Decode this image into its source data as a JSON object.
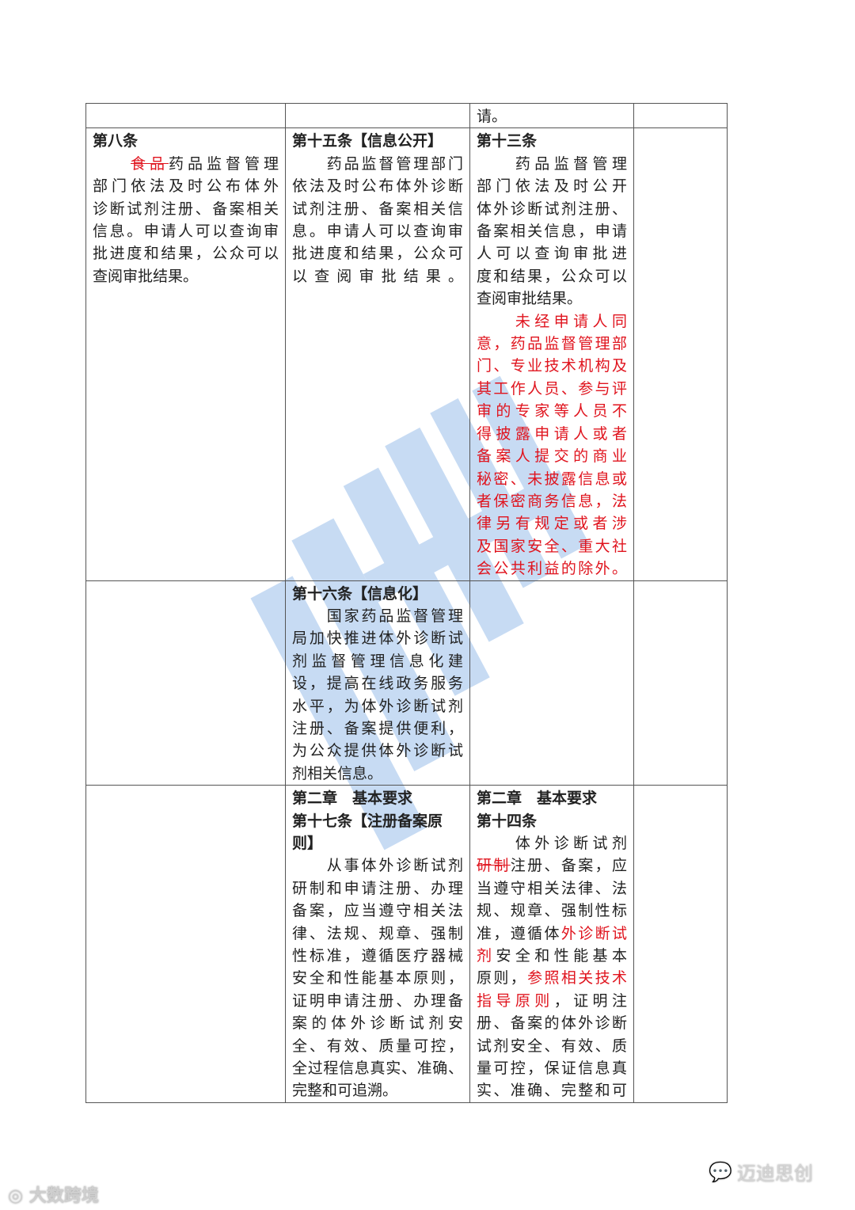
{
  "table": {
    "rows": [
      {
        "cells": [
          {
            "headings": [],
            "paras": []
          },
          {
            "headings": [],
            "paras": []
          },
          {
            "headings": [],
            "paras": [
              [
                [
                  [
                    "请。",
                    ""
                  ]
                ]
              ]
            ]
          },
          {
            "headings": [],
            "paras": []
          }
        ]
      },
      {
        "cells": [
          {
            "headings": [
              "第八条"
            ],
            "paras": [
              [
                [
                  [
                    "　　",
                    ""
                  ],
                  [
                    "食品",
                    "del"
                  ],
                  [
                    "药品监督管理",
                    ""
                  ]
                ],
                [
                  [
                    "部门依法及时公布体外",
                    ""
                  ]
                ],
                [
                  [
                    "诊断试剂注册、备案相关",
                    ""
                  ]
                ],
                [
                  [
                    "信息。申请人可以查询审",
                    ""
                  ]
                ],
                [
                  [
                    "批进度和结果，公众可以",
                    ""
                  ]
                ],
                [
                  [
                    "查阅审批结果。",
                    ""
                  ]
                ]
              ]
            ]
          },
          {
            "headings": [
              "第十五条【信息公开】"
            ],
            "paras": [
              [
                [
                  [
                    "　　药品监督管理部门",
                    ""
                  ]
                ],
                [
                  [
                    "依法及时公布体外诊断",
                    ""
                  ]
                ],
                [
                  [
                    "试剂注册、备案相关信",
                    ""
                  ]
                ],
                [
                  [
                    "息。申请人可以查询审",
                    ""
                  ]
                ],
                [
                  [
                    "批进度和结果，公众可",
                    ""
                  ]
                ],
                [
                  [
                    "以查阅审批结果。",
                    ""
                  ]
                ]
              ]
            ]
          },
          {
            "headings": [
              "第十三条"
            ],
            "paras": [
              [
                [
                  [
                    "　　药品监督管理",
                    ""
                  ]
                ],
                [
                  [
                    "部门依法及时公开",
                    ""
                  ]
                ],
                [
                  [
                    "体外诊断试剂注册、",
                    ""
                  ]
                ],
                [
                  [
                    "备案相关信息，申请",
                    ""
                  ]
                ],
                [
                  [
                    "人可以查询审批进",
                    ""
                  ]
                ],
                [
                  [
                    "度和结果，公众可以",
                    ""
                  ]
                ],
                [
                  [
                    "查阅审批结果。",
                    ""
                  ]
                ]
              ],
              [
                [
                  [
                    "　　未经申请人同",
                    "red"
                  ]
                ],
                [
                  [
                    "意，药品监督管理部",
                    "red"
                  ]
                ],
                [
                  [
                    "门、专业技术机构及",
                    "red"
                  ]
                ],
                [
                  [
                    "其工作人员、参与评",
                    "red"
                  ]
                ],
                [
                  [
                    "审的专家等人员不",
                    "red"
                  ]
                ],
                [
                  [
                    "得披露申请人或者",
                    "red"
                  ]
                ],
                [
                  [
                    "备案人提交的商业",
                    "red"
                  ]
                ],
                [
                  [
                    "秘密、未披露信息或",
                    "red"
                  ]
                ],
                [
                  [
                    "者保密商务信息，法",
                    "red"
                  ]
                ],
                [
                  [
                    "律另有规定或者涉",
                    "red"
                  ]
                ],
                [
                  [
                    "及国家安全、重大社",
                    "red"
                  ]
                ],
                [
                  [
                    "会公共利益的除外。",
                    "red"
                  ]
                ]
              ]
            ]
          },
          {
            "headings": [],
            "paras": []
          }
        ]
      },
      {
        "cells": [
          {
            "headings": [],
            "paras": []
          },
          {
            "headings": [
              "第十六条【信息化】"
            ],
            "paras": [
              [
                [
                  [
                    "　　国家药品监督管理",
                    ""
                  ]
                ],
                [
                  [
                    "局加快推进体外诊断试",
                    ""
                  ]
                ],
                [
                  [
                    "剂监督管理信息化建",
                    ""
                  ]
                ],
                [
                  [
                    "设，提高在线政务服务",
                    ""
                  ]
                ],
                [
                  [
                    "水平，为体外诊断试剂",
                    ""
                  ]
                ],
                [
                  [
                    "注册、备案提供便利，",
                    ""
                  ]
                ],
                [
                  [
                    "为公众提供体外诊断试",
                    ""
                  ]
                ],
                [
                  [
                    "剂相关信息。",
                    ""
                  ]
                ]
              ]
            ]
          },
          {
            "headings": [],
            "paras": []
          },
          {
            "headings": [],
            "paras": []
          }
        ]
      },
      {
        "cells": [
          {
            "headings": [],
            "paras": []
          },
          {
            "headings": [
              "第二章　基本要求",
              "第十七条【注册备案原",
              "则】"
            ],
            "paras": [
              [
                [
                  [
                    "　　从事体外诊断试剂",
                    ""
                  ]
                ],
                [
                  [
                    "研制和申请注册、办理",
                    ""
                  ]
                ],
                [
                  [
                    "备案，应当遵守相关法",
                    ""
                  ]
                ],
                [
                  [
                    "律、法规、规章、强制",
                    ""
                  ]
                ],
                [
                  [
                    "性标准，遵循医疗器械",
                    ""
                  ]
                ],
                [
                  [
                    "安全和性能基本原则，",
                    ""
                  ]
                ],
                [
                  [
                    "证明申请注册、办理备",
                    ""
                  ]
                ],
                [
                  [
                    "案的体外诊断试剂安",
                    ""
                  ]
                ],
                [
                  [
                    "全、有效、质量可控，",
                    ""
                  ]
                ],
                [
                  [
                    "全过程信息真实、准确、",
                    ""
                  ]
                ],
                [
                  [
                    "完整和可追溯。",
                    ""
                  ]
                ]
              ]
            ]
          },
          {
            "headings": [
              "第二章　基本要求",
              "第十四条"
            ],
            "paras": [
              [
                [
                  [
                    "　　体外诊断试剂",
                    ""
                  ]
                ],
                [
                  [
                    "研制",
                    "del"
                  ],
                  [
                    "注册、备案，应",
                    ""
                  ]
                ],
                [
                  [
                    "当遵守相关法律、法",
                    ""
                  ]
                ],
                [
                  [
                    "规、规章、强制性标",
                    ""
                  ]
                ],
                [
                  [
                    "准，遵循体",
                    ""
                  ],
                  [
                    "外诊断试",
                    "red"
                  ]
                ],
                [
                  [
                    "剂",
                    "red"
                  ],
                  [
                    "安全和性能基本",
                    ""
                  ]
                ],
                [
                  [
                    "原则，",
                    ""
                  ],
                  [
                    "参照相关技术",
                    "red"
                  ]
                ],
                [
                  [
                    "指导原则",
                    "red"
                  ],
                  [
                    "，证明注",
                    ""
                  ]
                ],
                [
                  [
                    "册、备案的体外诊断",
                    ""
                  ]
                ],
                [
                  [
                    "试剂安全、有效、质",
                    ""
                  ]
                ],
                [
                  [
                    "量可控，保证信息真",
                    ""
                  ]
                ],
                [
                  [
                    "实、准确、完整和可",
                    ""
                  ]
                ]
              ]
            ],
            "continues": true
          },
          {
            "headings": [],
            "paras": []
          }
        ]
      }
    ]
  },
  "watermark": {
    "brand": "迈迪思创",
    "color": "#4a8fd6"
  },
  "footer": {
    "left_logo": "大数跨境",
    "right_logo": "迈迪思创"
  }
}
